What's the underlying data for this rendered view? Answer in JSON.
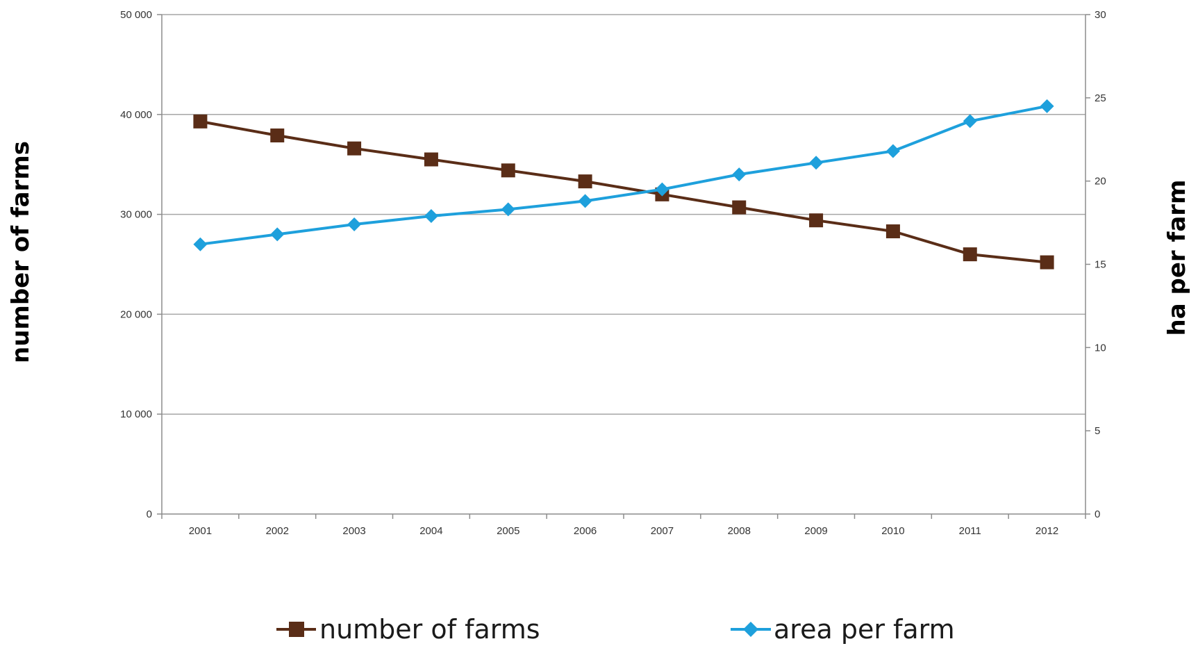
{
  "chart_data": {
    "type": "line",
    "title": "",
    "categories": [
      "2001",
      "2002",
      "2003",
      "2004",
      "2005",
      "2006",
      "2007",
      "2008",
      "2009",
      "2010",
      "2011",
      "2012"
    ],
    "y_left": {
      "label": "number of farms",
      "ylim": [
        0,
        50000
      ],
      "ticks": [
        0,
        10000,
        20000,
        30000,
        40000,
        50000
      ],
      "tick_labels": [
        "0",
        "10 000",
        "20 000",
        "30 000",
        "40 000",
        "50 000"
      ]
    },
    "y_right": {
      "label": "ha per farm",
      "ylim": [
        0,
        30
      ],
      "ticks": [
        0,
        5,
        10,
        15,
        20,
        25,
        30
      ],
      "tick_labels": [
        "0",
        "5",
        "10",
        "15",
        "20",
        "25",
        "30"
      ]
    },
    "grid": "horizontal",
    "legend_position": "bottom",
    "series": [
      {
        "name": "number of farms",
        "axis": "left",
        "marker": "square",
        "color": "#5a2d17",
        "values": [
          39300,
          37900,
          36600,
          35500,
          34400,
          33300,
          32000,
          30700,
          29400,
          28300,
          26000,
          25200
        ]
      },
      {
        "name": "area per farm",
        "axis": "right",
        "marker": "diamond",
        "color": "#1ea0dc",
        "values": [
          16.2,
          16.8,
          17.4,
          17.9,
          18.3,
          18.8,
          19.5,
          20.4,
          21.1,
          21.8,
          23.6,
          24.5
        ]
      }
    ]
  }
}
